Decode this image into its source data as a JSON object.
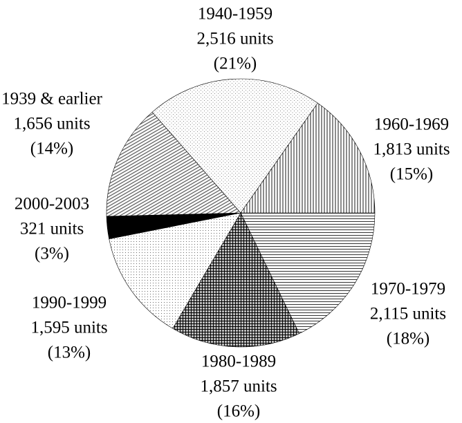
{
  "chart_data": {
    "type": "pie",
    "categories": [
      "1970-1979",
      "1980-1989",
      "1990-1999",
      "2000-2003",
      "1939 & earlier",
      "1940-1959",
      "1960-1969"
    ],
    "values": [
      2115,
      1857,
      1595,
      321,
      1656,
      2516,
      1813
    ],
    "value_labels": [
      "2,115 units",
      "1,857 units",
      "1,595 units",
      "321 units",
      "1,656 units",
      "2,516 units",
      "1,813 units"
    ],
    "percents": [
      18,
      16,
      13,
      3,
      14,
      21,
      15
    ],
    "percent_labels": [
      "(18%)",
      "(16%)",
      "(13%)",
      "(3%)",
      "(14%)",
      "(21%)",
      "(15%)"
    ]
  }
}
